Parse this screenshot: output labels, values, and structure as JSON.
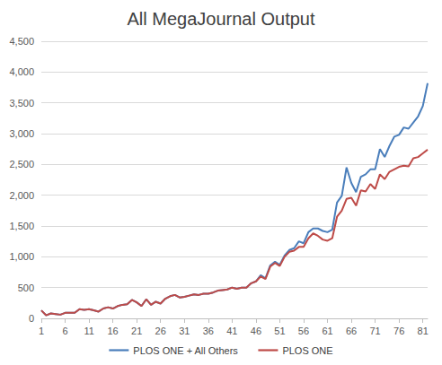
{
  "chart_data": {
    "type": "line",
    "title": "All MegaJournal Output",
    "x": [
      1,
      2,
      3,
      4,
      5,
      6,
      7,
      8,
      9,
      10,
      11,
      12,
      13,
      14,
      15,
      16,
      17,
      18,
      19,
      20,
      21,
      22,
      23,
      24,
      25,
      26,
      27,
      28,
      29,
      30,
      31,
      32,
      33,
      34,
      35,
      36,
      37,
      38,
      39,
      40,
      41,
      42,
      43,
      44,
      45,
      46,
      47,
      48,
      49,
      50,
      51,
      52,
      53,
      54,
      55,
      56,
      57,
      58,
      59,
      60,
      61,
      62,
      63,
      64,
      65,
      66,
      67,
      68,
      69,
      70,
      71,
      72,
      73,
      74,
      75,
      76,
      77,
      78,
      79,
      80,
      81,
      82
    ],
    "series": [
      {
        "name": "PLOS ONE + All Others",
        "color": "#4a7ebb",
        "values": [
          130,
          50,
          80,
          70,
          60,
          90,
          90,
          90,
          150,
          140,
          150,
          130,
          110,
          160,
          180,
          160,
          200,
          220,
          230,
          300,
          260,
          200,
          310,
          220,
          270,
          240,
          320,
          360,
          380,
          340,
          350,
          370,
          390,
          380,
          400,
          400,
          420,
          450,
          460,
          470,
          500,
          480,
          500,
          500,
          570,
          600,
          700,
          650,
          860,
          920,
          870,
          1020,
          1110,
          1140,
          1250,
          1220,
          1400,
          1460,
          1460,
          1420,
          1400,
          1440,
          1880,
          1990,
          2450,
          2200,
          2050,
          2300,
          2340,
          2420,
          2420,
          2750,
          2620,
          2800,
          2950,
          2980,
          3100,
          3080,
          3180,
          3280,
          3450,
          3820
        ]
      },
      {
        "name": "PLOS ONE",
        "color": "#be4b48",
        "values": [
          130,
          50,
          80,
          70,
          60,
          90,
          90,
          90,
          150,
          140,
          150,
          130,
          110,
          160,
          180,
          160,
          200,
          220,
          230,
          300,
          260,
          200,
          310,
          220,
          270,
          240,
          320,
          360,
          380,
          340,
          350,
          370,
          390,
          380,
          400,
          400,
          420,
          450,
          460,
          470,
          500,
          480,
          500,
          500,
          570,
          600,
          680,
          640,
          840,
          900,
          850,
          1000,
          1080,
          1100,
          1160,
          1160,
          1300,
          1380,
          1340,
          1280,
          1260,
          1300,
          1650,
          1750,
          1940,
          1960,
          1830,
          2080,
          2060,
          2180,
          2100,
          2340,
          2260,
          2380,
          2420,
          2460,
          2480,
          2470,
          2600,
          2620,
          2680,
          2740
        ]
      }
    ],
    "xlim": [
      1,
      82
    ],
    "xticks": [
      1,
      6,
      11,
      16,
      21,
      26,
      31,
      36,
      41,
      46,
      51,
      56,
      61,
      66,
      71,
      76,
      81
    ],
    "ylim": [
      0,
      4500
    ],
    "yticks": [
      0,
      500,
      {
        "value": 1000,
        "label": "1,000"
      },
      {
        "value": 1500,
        "label": "1,500"
      },
      {
        "value": 2000,
        "label": "2,000"
      },
      {
        "value": 2500,
        "label": "2,500"
      },
      {
        "value": 3000,
        "label": "3,000"
      },
      {
        "value": 3500,
        "label": "3,500"
      },
      {
        "value": 4000,
        "label": "4,000"
      },
      {
        "value": 4500,
        "label": "4,500"
      }
    ],
    "grid": true,
    "legend": "bottom"
  }
}
